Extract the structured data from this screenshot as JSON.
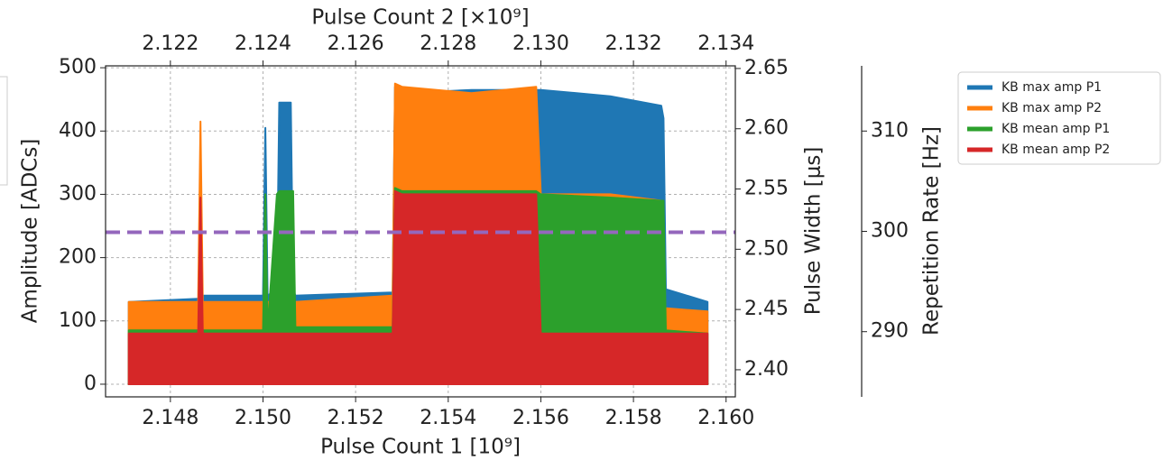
{
  "chart_data": {
    "type": "area",
    "xlabel": "Pulse Count 1 [10⁹]",
    "x2label": "Pulse Count 2 [×10⁹]",
    "ylabel": "Amplitude [ADCs]",
    "y2label": "Pulse Width [μs]",
    "y3label": "Repetition Rate [Hz]",
    "xlim": [
      2.1466,
      2.1602
    ],
    "xticks": [
      2.148,
      {
        "value": 2.15,
        "label": "2.150"
      },
      2.152,
      2.154,
      2.156,
      2.158,
      {
        "value": 2.16,
        "label": "2.160"
      }
    ],
    "x2lim": [
      2.1206,
      2.1342
    ],
    "x2ticks": [
      2.122,
      2.124,
      2.126,
      2.128,
      {
        "value": 2.13,
        "label": "2.130"
      },
      2.132,
      2.134
    ],
    "ylim": [
      -20,
      503
    ],
    "yticks": [
      0,
      100,
      200,
      300,
      400,
      500
    ],
    "y2lim": [
      2.3775,
      2.6522
    ],
    "y2ticks": [
      {
        "value": 2.4,
        "label": "2.40"
      },
      2.45,
      {
        "value": 2.5,
        "label": "2.50"
      },
      2.55,
      {
        "value": 2.6,
        "label": "2.60"
      },
      2.65
    ],
    "y3lim": [
      283.5,
      316.5
    ],
    "y3ticks": [
      290,
      300,
      310
    ],
    "grid": true,
    "legend": "upper right",
    "hline": {
      "value": 240,
      "color": "#9467bd"
    },
    "x": [
      2.1471,
      2.1486,
      2.14865,
      2.1487,
      2.15,
      2.15005,
      2.1501,
      2.1503,
      2.15035,
      2.1506,
      2.15065,
      2.1507,
      2.1528,
      2.15285,
      2.153,
      2.1545,
      2.1559,
      2.156,
      2.1575,
      2.1586,
      2.15865,
      2.1587,
      2.1596
    ],
    "series": [
      {
        "name": "KB max amp P1",
        "color": "#1f77b4",
        "values": [
          130,
          135,
          135,
          140,
          140,
          405,
          140,
          150,
          445,
          445,
          150,
          140,
          145,
          470,
          460,
          465,
          465,
          465,
          455,
          440,
          420,
          150,
          130
        ]
      },
      {
        "name": "KB max amp P2",
        "color": "#ff7f0e",
        "values": [
          130,
          130,
          415,
          130,
          130,
          130,
          130,
          130,
          130,
          130,
          130,
          130,
          140,
          475,
          470,
          460,
          470,
          300,
          300,
          290,
          120,
          120,
          115
        ]
      },
      {
        "name": "KB mean amp P1",
        "color": "#2ca02c",
        "values": [
          85,
          85,
          85,
          85,
          85,
          300,
          85,
          300,
          305,
          305,
          305,
          90,
          90,
          310,
          305,
          305,
          305,
          300,
          295,
          290,
          290,
          85,
          80
        ]
      },
      {
        "name": "KB mean amp P2",
        "color": "#d62728",
        "values": [
          80,
          80,
          295,
          80,
          80,
          80,
          80,
          80,
          80,
          80,
          80,
          80,
          80,
          305,
          300,
          300,
          300,
          80,
          80,
          80,
          80,
          80,
          80
        ]
      }
    ]
  }
}
